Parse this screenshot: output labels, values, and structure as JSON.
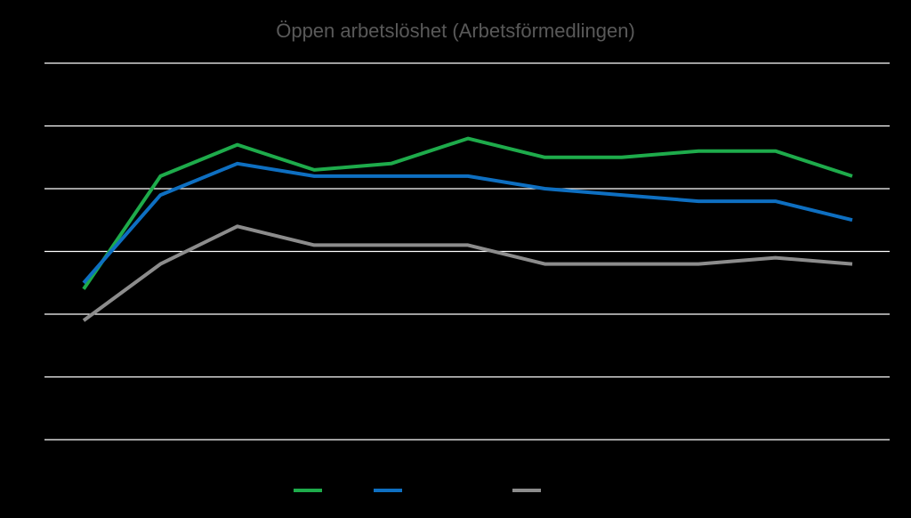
{
  "chart_data": {
    "type": "line",
    "title": "Öppen arbetslöshet (Arbetsförmedlingen)",
    "xlabel": "",
    "ylabel": "",
    "categories": [
      "",
      "",
      "",
      "",
      "",
      "",
      "",
      "",
      "",
      "",
      ""
    ],
    "ylim": [
      0,
      6
    ],
    "grid": true,
    "legend_position": "bottom",
    "series": [
      {
        "color": "#1eab4b",
        "values": [
          2.4,
          4.2,
          4.7,
          4.3,
          4.4,
          4.8,
          4.5,
          4.5,
          4.6,
          4.6,
          4.2
        ]
      },
      {
        "color": "#0e6fc1",
        "values": [
          2.5,
          3.9,
          4.4,
          4.2,
          4.2,
          4.2,
          4.0,
          3.9,
          3.8,
          3.8,
          3.5
        ]
      },
      {
        "color": "#8c8c8c",
        "values": [
          1.9,
          2.8,
          3.4,
          3.1,
          3.1,
          3.1,
          2.8,
          2.8,
          2.8,
          2.9,
          2.8
        ]
      }
    ],
    "colors": {
      "background": "#000000",
      "title": "#595959",
      "grid": "#ffffff"
    }
  }
}
